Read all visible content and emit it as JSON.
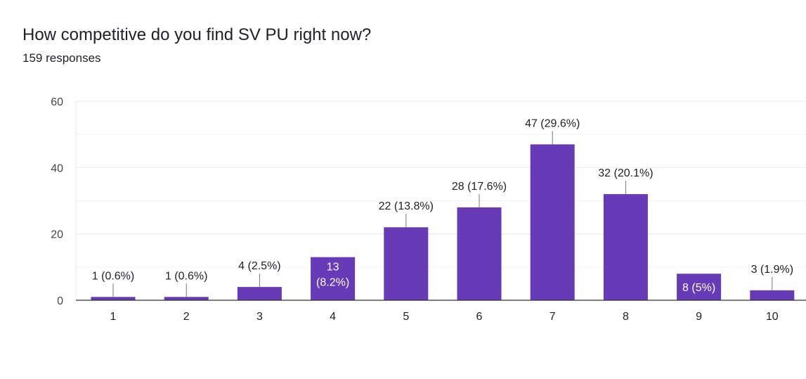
{
  "form": {
    "question": "How competitive do you find SV PU right now?",
    "responses": "159 responses"
  },
  "colors": {
    "bar": "#673ab7",
    "grid": "#e8e8e8",
    "minor_grid": "#f3f3f3",
    "axis": "#333333",
    "text": "#202124",
    "inside_label": "#ffffff"
  },
  "chart_data": {
    "type": "bar",
    "title": "How competitive do you find SV PU right now?",
    "xlabel": "",
    "ylabel": "",
    "ylim": [
      0,
      60
    ],
    "yticks": [
      "0",
      "20",
      "40",
      "60"
    ],
    "categories": [
      "1",
      "2",
      "3",
      "4",
      "5",
      "6",
      "7",
      "8",
      "9",
      "10"
    ],
    "values": [
      1,
      1,
      4,
      13,
      22,
      28,
      47,
      32,
      8,
      3
    ],
    "data_labels": [
      "1 (0.6%)",
      "1 (0.6%)",
      "4 (2.5%)",
      "13 (8.2%)",
      "22 (13.8%)",
      "28 (17.6%)",
      "47 (29.6%)",
      "32 (20.1%)",
      "8 (5%)",
      "3 (1.9%)"
    ],
    "inside_labels": [
      false,
      false,
      false,
      true,
      false,
      false,
      false,
      false,
      true,
      false
    ],
    "grid": true
  }
}
